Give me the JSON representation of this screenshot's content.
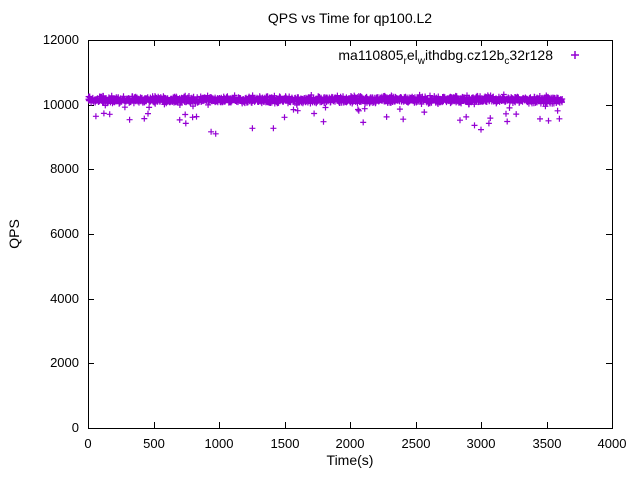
{
  "chart_data": {
    "type": "scatter",
    "title": "QPS vs Time for qp100.L2",
    "xlabel": "Time(s)",
    "ylabel": "QPS",
    "xlim": [
      0,
      4000
    ],
    "ylim": [
      0,
      12000
    ],
    "xticks": [
      0,
      500,
      1000,
      1500,
      2000,
      2500,
      3000,
      3500,
      4000
    ],
    "yticks": [
      0,
      2000,
      4000,
      6000,
      8000,
      10000,
      12000
    ],
    "grid": false,
    "legend_position": "top-right-inside",
    "marker": "plus",
    "marker_color": "#9400D3",
    "series": [
      {
        "name": "ma110805_rel_withdbg.cz12b_c32r128",
        "label_segments": [
          {
            "text": "ma110805"
          },
          {
            "text": "r",
            "sub": true
          },
          {
            "text": "el"
          },
          {
            "text": "w",
            "sub": true
          },
          {
            "text": "ithdbg.cz12b"
          },
          {
            "text": "c",
            "sub": true
          },
          {
            "text": "32r128"
          }
        ],
        "synthesis": {
          "seed": 1108,
          "n_points": 1500,
          "x_min": 2,
          "x_max": 3620,
          "y_base": 10150,
          "y_sigma": 95,
          "dip_probability": 0.03,
          "dip_depth": [
            100,
            650
          ],
          "y_max_clip": 10380
        },
        "outliers": [
          [
            60,
            9640
          ],
          [
            430,
            9570
          ],
          [
            700,
            9530
          ],
          [
            940,
            9160
          ],
          [
            975,
            9100
          ],
          [
            1255,
            9270
          ],
          [
            1415,
            9270
          ],
          [
            1500,
            9610
          ],
          [
            2840,
            9520
          ],
          [
            2950,
            9360
          ],
          [
            3000,
            9230
          ],
          [
            3060,
            9420
          ],
          [
            3200,
            9480
          ],
          [
            3450,
            9560
          ],
          [
            3515,
            9500
          ]
        ]
      }
    ]
  }
}
